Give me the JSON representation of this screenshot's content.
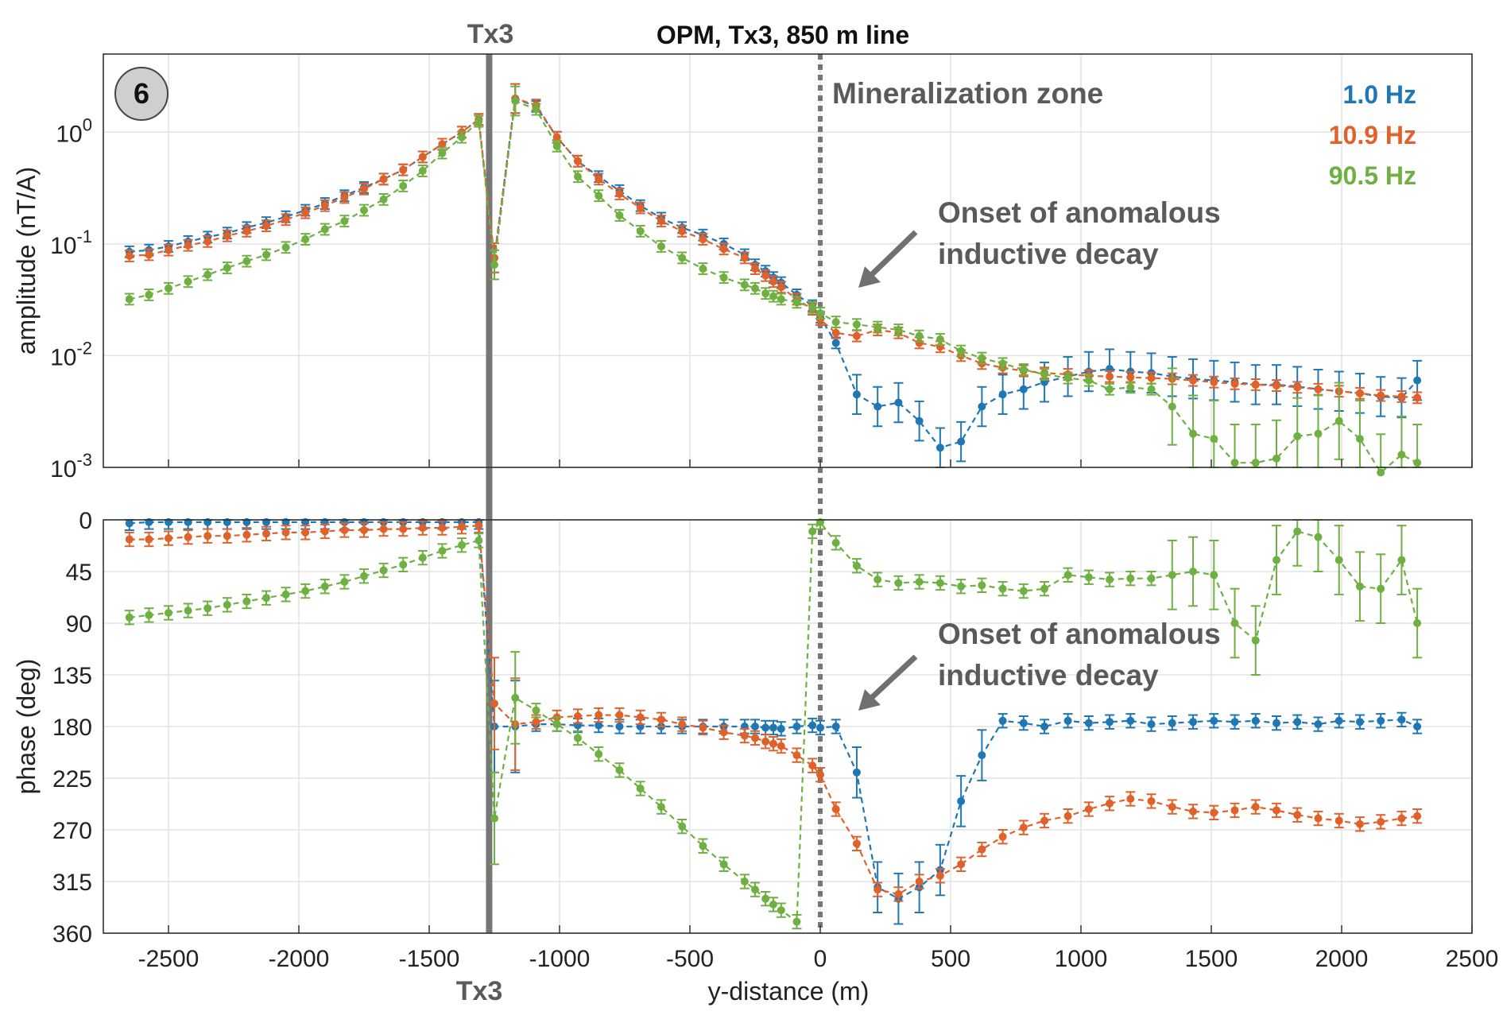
{
  "chart_data": {
    "type": "line",
    "title": "OPM, Tx3, 850 m line",
    "panel_label": "6",
    "xlabel": "y-distance (m)",
    "xlim": [
      -2750,
      2500
    ],
    "xticks": [
      "-2500",
      "-2000",
      "-1500",
      "-1000",
      "-500",
      "0",
      "500",
      "1000",
      "1500",
      "2000",
      "2500"
    ],
    "xtick_values": [
      -2500,
      -2000,
      -1500,
      -1000,
      -500,
      0,
      500,
      1000,
      1500,
      2000,
      2500
    ],
    "grid": true,
    "legend_placement": "top-right",
    "colors": {
      "s1": "#1f77b4",
      "s2": "#e0622a",
      "s3": "#6fb043",
      "marker_line": "#777777"
    },
    "markers": {
      "tx_label_top": "Tx3",
      "tx_label_bottom": "Tx3",
      "tx_position": -1270,
      "zone_position": 0,
      "zone_label": "Mineralization zone",
      "onset_line1": "Onset of anomalous",
      "onset_line2": "inductive decay"
    },
    "series": [
      {
        "name": "1.0 Hz"
      },
      {
        "name": "10.9 Hz"
      },
      {
        "name": "90.5 Hz"
      }
    ],
    "amplitude": {
      "ylabel": "amplitude (nT/A)",
      "scale": "log",
      "ylim": [
        0.001,
        5
      ],
      "yticks": [
        0.001,
        0.01,
        0.1,
        1
      ],
      "x_left": [
        -2650,
        -2575,
        -2500,
        -2425,
        -2350,
        -2275,
        -2200,
        -2125,
        -2050,
        -1975,
        -1900,
        -1825,
        -1750,
        -1675,
        -1600,
        -1525,
        -1450,
        -1375,
        -1310
      ],
      "s1_left": [
        0.085,
        0.088,
        0.095,
        0.105,
        0.115,
        0.125,
        0.14,
        0.155,
        0.175,
        0.2,
        0.23,
        0.27,
        0.32,
        0.38,
        0.46,
        0.6,
        0.78,
        1.0,
        1.3
      ],
      "s2_left": [
        0.078,
        0.08,
        0.088,
        0.097,
        0.105,
        0.118,
        0.13,
        0.145,
        0.165,
        0.19,
        0.22,
        0.26,
        0.31,
        0.38,
        0.46,
        0.6,
        0.78,
        1.0,
        1.3
      ],
      "s3_left": [
        0.032,
        0.035,
        0.04,
        0.046,
        0.053,
        0.061,
        0.07,
        0.08,
        0.093,
        0.11,
        0.135,
        0.16,
        0.2,
        0.25,
        0.33,
        0.45,
        0.65,
        0.9,
        1.25
      ],
      "x_dip": -1250,
      "s1_dip": 0.075,
      "s2_dip": 0.075,
      "s3_dip": 0.065,
      "x_right": [
        -1170,
        -1090,
        -1010,
        -930,
        -850,
        -770,
        -690,
        -610,
        -530,
        -450,
        -370,
        -290,
        -250,
        -210,
        -180,
        -150,
        -90,
        -30,
        0
      ],
      "s1_right": [
        2.0,
        1.7,
        0.9,
        0.55,
        0.4,
        0.3,
        0.22,
        0.17,
        0.14,
        0.12,
        0.1,
        0.08,
        0.065,
        0.057,
        0.05,
        0.045,
        0.035,
        0.028,
        0.022
      ],
      "s2_right": [
        2.0,
        1.75,
        0.9,
        0.55,
        0.38,
        0.28,
        0.21,
        0.16,
        0.13,
        0.11,
        0.09,
        0.075,
        0.06,
        0.052,
        0.046,
        0.041,
        0.032,
        0.026,
        0.021
      ],
      "s3_right": [
        1.9,
        1.6,
        0.75,
        0.4,
        0.27,
        0.18,
        0.13,
        0.095,
        0.075,
        0.06,
        0.05,
        0.043,
        0.04,
        0.036,
        0.034,
        0.032,
        0.03,
        0.027,
        0.024
      ],
      "x_pos": [
        60,
        140,
        220,
        300,
        380,
        460,
        540,
        620,
        700,
        780,
        860,
        950,
        1030,
        1110,
        1190,
        1270,
        1350,
        1430,
        1510,
        1590,
        1670,
        1750,
        1830,
        1910,
        1990,
        2070,
        2150,
        2230,
        2290
      ],
      "s1_pos": [
        0.013,
        0.0045,
        0.0035,
        0.0038,
        0.0026,
        0.0015,
        0.0017,
        0.0035,
        0.0045,
        0.005,
        0.0058,
        0.0065,
        0.0072,
        0.0076,
        0.0072,
        0.007,
        0.0065,
        0.0062,
        0.006,
        0.0058,
        0.0055,
        0.0055,
        0.0053,
        0.005,
        0.0048,
        0.0046,
        0.0043,
        0.0042,
        0.006
      ],
      "s2_pos": [
        0.016,
        0.015,
        0.017,
        0.016,
        0.013,
        0.012,
        0.01,
        0.0085,
        0.0078,
        0.0073,
        0.007,
        0.0068,
        0.0066,
        0.0065,
        0.0064,
        0.0063,
        0.0062,
        0.006,
        0.0058,
        0.0056,
        0.0055,
        0.0054,
        0.0052,
        0.005,
        0.0048,
        0.0046,
        0.0044,
        0.0043,
        0.0042
      ],
      "s3_pos": [
        0.02,
        0.019,
        0.018,
        0.017,
        0.015,
        0.014,
        0.011,
        0.0095,
        0.0085,
        0.0075,
        0.0068,
        0.0063,
        0.006,
        0.005,
        0.0052,
        0.005,
        0.0035,
        0.002,
        0.0018,
        0.0011,
        0.0011,
        0.0012,
        0.0019,
        0.002,
        0.0026,
        0.0018,
        0.0009,
        0.0013,
        0.0011
      ]
    },
    "phase": {
      "ylabel": "phase (deg)",
      "scale": "linear",
      "reversed": true,
      "ylim": [
        0,
        360
      ],
      "yticks": [
        "0",
        "45",
        "90",
        "135",
        "180",
        "225",
        "270",
        "315",
        "360"
      ],
      "ytick_values": [
        0,
        45,
        90,
        135,
        180,
        225,
        270,
        315,
        360
      ],
      "x_left": [
        -2650,
        -2575,
        -2500,
        -2425,
        -2350,
        -2275,
        -2200,
        -2125,
        -2050,
        -1975,
        -1900,
        -1825,
        -1750,
        -1675,
        -1600,
        -1525,
        -1450,
        -1375,
        -1310
      ],
      "s1_left": [
        3,
        2,
        2,
        2,
        2,
        2,
        2,
        2,
        2,
        2,
        2,
        2,
        2,
        2,
        2,
        2,
        2,
        2,
        2
      ],
      "s2_left": [
        17,
        17,
        16,
        15,
        14,
        14,
        13,
        12,
        11,
        11,
        10,
        9,
        9,
        8,
        8,
        7,
        7,
        6,
        5
      ],
      "s3_left": [
        85,
        83,
        81,
        79,
        77,
        74,
        71,
        68,
        65,
        62,
        58,
        54,
        49,
        44,
        39,
        33,
        27,
        22,
        18
      ],
      "x_dip": -1250,
      "s1_dip": 180,
      "s2_dip": 160,
      "s3_dip": 260,
      "x_right": [
        -1170,
        -1090,
        -1010,
        -930,
        -850,
        -770,
        -690,
        -610,
        -530,
        -450,
        -370,
        -290,
        -250,
        -210,
        -180,
        -150,
        -90,
        -30,
        0
      ],
      "s1_right": [
        180,
        178,
        178,
        179,
        179,
        180,
        180,
        180,
        180,
        180,
        180,
        180,
        180,
        181,
        181,
        182,
        180,
        179,
        181
      ],
      "s2_right": [
        178,
        176,
        172,
        171,
        170,
        170,
        172,
        174,
        178,
        181,
        185,
        188,
        190,
        193,
        195,
        197,
        205,
        214,
        222
      ],
      "s3_right": [
        155,
        166,
        178,
        190,
        204,
        218,
        234,
        250,
        267,
        284,
        300,
        315,
        322,
        330,
        335,
        340,
        350,
        10,
        2
      ],
      "x_pos": [
        60,
        140,
        220,
        300,
        380,
        460,
        540,
        620,
        700,
        780,
        860,
        950,
        1030,
        1110,
        1190,
        1270,
        1350,
        1430,
        1510,
        1590,
        1670,
        1750,
        1830,
        1910,
        1990,
        2070,
        2150,
        2230,
        2290
      ],
      "s1_pos": [
        180,
        220,
        320,
        330,
        320,
        305,
        245,
        205,
        175,
        177,
        180,
        175,
        177,
        176,
        175,
        178,
        177,
        176,
        175,
        176,
        175,
        177,
        176,
        178,
        175,
        176,
        175,
        174,
        180
      ],
      "s2_pos": [
        252,
        282,
        322,
        326,
        315,
        310,
        300,
        287,
        276,
        268,
        262,
        258,
        252,
        247,
        243,
        245,
        250,
        254,
        255,
        253,
        250,
        253,
        257,
        260,
        262,
        265,
        263,
        260,
        258
      ],
      "s3_pos": [
        20,
        40,
        52,
        55,
        54,
        55,
        58,
        57,
        60,
        62,
        60,
        48,
        50,
        52,
        51,
        51,
        48,
        45,
        48,
        90,
        105,
        35,
        10,
        15,
        35,
        58,
        60,
        35,
        90
      ]
    }
  }
}
